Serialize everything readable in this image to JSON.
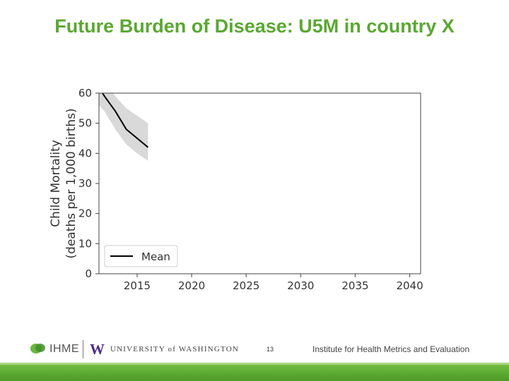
{
  "slide": {
    "title": "Future Burden of Disease: U5M in country X",
    "page_number": "13"
  },
  "footer": {
    "ihme_label": "IHME",
    "uw_mark": "W",
    "uw_label": "UNIVERSITY of WASHINGTON",
    "institute_label": "Institute for Health Metrics and Evaluation"
  },
  "colors": {
    "title": "#5aa832",
    "band": "#d9d9d9",
    "line": "#000000",
    "bar": "#5aa832"
  },
  "chart_data": {
    "type": "line",
    "ylabel": [
      "Child Mortality",
      "(deaths per 1,000 births)"
    ],
    "xlim": [
      2011.5,
      2041
    ],
    "ylim": [
      0,
      60
    ],
    "x_ticks": [
      2015,
      2020,
      2025,
      2030,
      2035,
      2040
    ],
    "y_ticks": [
      0,
      10,
      20,
      30,
      40,
      50,
      60
    ],
    "grid": false,
    "legend": {
      "position": "lower-left",
      "entries": [
        "Mean"
      ]
    },
    "series": [
      {
        "name": "Mean",
        "x": [
          2011.5,
          2012,
          2013,
          2014,
          2015,
          2016
        ],
        "y": [
          62,
          59,
          54,
          48,
          45,
          42
        ],
        "lower": [
          56,
          54,
          48,
          43,
          40,
          37.5
        ],
        "upper": [
          66,
          63,
          59,
          55,
          52.5,
          50
        ]
      }
    ]
  }
}
